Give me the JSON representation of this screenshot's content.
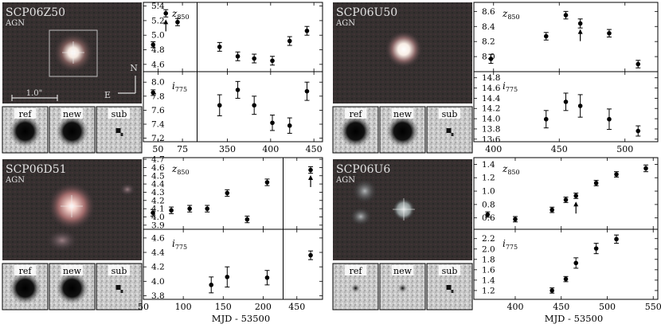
{
  "figure": {
    "xlabel": "MJD - 53500",
    "panels": [
      {
        "id": "SCP06Z50",
        "name": "SCP06Z50",
        "type_label": "AGN",
        "scale_label": "1.0\"",
        "compass": {
          "north": "N",
          "east": "E"
        },
        "stamps": [
          "ref",
          "new",
          "sub"
        ]
      },
      {
        "id": "SCP06U50",
        "name": "SCP06U50",
        "type_label": "AGN",
        "stamps": [
          "ref",
          "new",
          "sub"
        ]
      },
      {
        "id": "SCP06D51",
        "name": "SCP06D51",
        "type_label": "AGN",
        "stamps": [
          "ref",
          "new",
          "sub"
        ]
      },
      {
        "id": "SCP06U6",
        "name": "SCP06U6",
        "type_label": "AGN",
        "stamps": [
          "ref",
          "new",
          "sub"
        ]
      }
    ]
  },
  "chart_data": [
    {
      "id": "SCP06Z50",
      "type": "scatter",
      "xlabel": "",
      "x_segments": [
        {
          "xlim": [
            35,
            90
          ],
          "ticks": [
            50,
            75
          ]
        },
        {
          "xlim": [
            315,
            460
          ],
          "ticks": [
            350,
            400,
            450
          ]
        }
      ],
      "rows": [
        {
          "label": "z",
          "label_sub": "850",
          "ylim": [
            4.5,
            5.45
          ],
          "yticks": [
            "4.6",
            "4.8",
            "5.0",
            "5.2",
            "5.4"
          ],
          "points": [
            {
              "x": 45,
              "y": 4.87,
              "err": 0.04
            },
            {
              "x": 58,
              "y": 5.3,
              "err": 0.05
            },
            {
              "x": 70,
              "y": 5.18,
              "err": 0.05
            },
            {
              "x": 341,
              "y": 4.84,
              "err": 0.06
            },
            {
              "x": 362,
              "y": 4.71,
              "err": 0.06
            },
            {
              "x": 381,
              "y": 4.68,
              "err": 0.06
            },
            {
              "x": 402,
              "y": 4.65,
              "err": 0.06
            },
            {
              "x": 422,
              "y": 4.92,
              "err": 0.06
            },
            {
              "x": 442,
              "y": 5.06,
              "err": 0.06
            }
          ],
          "upper_limits": [
            {
              "x": 58,
              "y": 5.14
            }
          ]
        },
        {
          "label": "i",
          "label_sub": "775",
          "ylim": [
            7.15,
            8.15
          ],
          "yticks": [
            "7.2",
            "7.4",
            "7.6",
            "7.8",
            "8.0"
          ],
          "points": [
            {
              "x": 45,
              "y": 7.85,
              "err": 0.04
            },
            {
              "x": 341,
              "y": 7.67,
              "err": 0.15
            },
            {
              "x": 362,
              "y": 7.89,
              "err": 0.12
            },
            {
              "x": 381,
              "y": 7.67,
              "err": 0.13
            },
            {
              "x": 402,
              "y": 7.42,
              "err": 0.11
            },
            {
              "x": 422,
              "y": 7.38,
              "err": 0.11
            },
            {
              "x": 442,
              "y": 7.87,
              "err": 0.13
            }
          ],
          "upper_limits": []
        }
      ]
    },
    {
      "id": "SCP06U50",
      "type": "scatter",
      "xlabel": "",
      "x_segments": [
        {
          "xlim": [
            385,
            525
          ],
          "ticks": [
            400,
            450,
            500
          ]
        }
      ],
      "rows": [
        {
          "label": "z",
          "label_sub": "850",
          "ylim": [
            7.8,
            8.72
          ],
          "yticks": [
            "8.0",
            "8.2",
            "8.4",
            "8.6"
          ],
          "points": [
            {
              "x": 398,
              "y": 7.97,
              "err": 0.06
            },
            {
              "x": 440,
              "y": 8.27,
              "err": 0.05
            },
            {
              "x": 455,
              "y": 8.55,
              "err": 0.05
            },
            {
              "x": 466,
              "y": 8.44,
              "err": 0.06
            },
            {
              "x": 488,
              "y": 8.31,
              "err": 0.05
            },
            {
              "x": 510,
              "y": 7.9,
              "err": 0.05
            }
          ],
          "upper_limits": [
            {
              "x": 466,
              "y": 8.29
            }
          ]
        },
        {
          "label": "i",
          "label_sub": "775",
          "ylim": [
            13.55,
            14.92
          ],
          "yticks": [
            "13.6",
            "13.8",
            "14.0",
            "14.2",
            "14.4",
            "14.6",
            "14.8"
          ],
          "points": [
            {
              "x": 440,
              "y": 13.99,
              "err": 0.17
            },
            {
              "x": 455,
              "y": 14.33,
              "err": 0.17
            },
            {
              "x": 466,
              "y": 14.25,
              "err": 0.22
            },
            {
              "x": 488,
              "y": 13.99,
              "err": 0.2
            },
            {
              "x": 510,
              "y": 13.76,
              "err": 0.1
            }
          ],
          "upper_limits": []
        }
      ]
    },
    {
      "id": "SCP06D51",
      "type": "scatter",
      "xlabel": "MJD - 53500",
      "x_segments": [
        {
          "xlim": [
            50,
            225
          ],
          "ticks": [
            50,
            100,
            150,
            200
          ]
        },
        {
          "xlim": [
            435,
            478
          ],
          "ticks": [
            450
          ]
        }
      ],
      "rows": [
        {
          "label": "z",
          "label_sub": "850",
          "ylim": [
            3.85,
            4.72
          ],
          "yticks": [
            "3.9",
            "4.0",
            "4.1",
            "4.2",
            "4.3",
            "4.4",
            "4.5",
            "4.6",
            "4.7"
          ],
          "points": [
            {
              "x": 62,
              "y": 4.05,
              "err": 0.04
            },
            {
              "x": 85,
              "y": 4.08,
              "err": 0.04
            },
            {
              "x": 108,
              "y": 4.1,
              "err": 0.04
            },
            {
              "x": 130,
              "y": 4.1,
              "err": 0.04
            },
            {
              "x": 155,
              "y": 4.29,
              "err": 0.04
            },
            {
              "x": 180,
              "y": 3.97,
              "err": 0.04
            },
            {
              "x": 205,
              "y": 4.42,
              "err": 0.04
            },
            {
              "x": 465,
              "y": 4.57,
              "err": 0.04
            }
          ],
          "upper_limits": [
            {
              "x": 465,
              "y": 4.44
            }
          ]
        },
        {
          "label": "i",
          "label_sub": "775",
          "ylim": [
            3.75,
            4.72
          ],
          "yticks": [
            "3.8",
            "4.0",
            "4.2",
            "4.4",
            "4.6"
          ],
          "points": [
            {
              "x": 135,
              "y": 3.95,
              "err": 0.11
            },
            {
              "x": 155,
              "y": 4.06,
              "err": 0.14
            },
            {
              "x": 205,
              "y": 4.05,
              "err": 0.1
            },
            {
              "x": 465,
              "y": 4.36,
              "err": 0.06
            }
          ],
          "upper_limits": []
        }
      ]
    },
    {
      "id": "SCP06U6",
      "type": "scatter",
      "xlabel": "MJD - 53500",
      "x_segments": [
        {
          "xlim": [
            355,
            555
          ],
          "ticks": [
            400,
            450,
            500,
            550
          ]
        }
      ],
      "rows": [
        {
          "label": "z",
          "label_sub": "850",
          "ylim": [
            0.43,
            1.5
          ],
          "yticks": [
            "0.6",
            "0.8",
            "1.0",
            "1.2",
            "1.4"
          ],
          "points": [
            {
              "x": 370,
              "y": 0.65,
              "err": 0.04
            },
            {
              "x": 400,
              "y": 0.58,
              "err": 0.04
            },
            {
              "x": 440,
              "y": 0.72,
              "err": 0.04
            },
            {
              "x": 455,
              "y": 0.87,
              "err": 0.04
            },
            {
              "x": 466,
              "y": 0.93,
              "err": 0.04
            },
            {
              "x": 488,
              "y": 1.12,
              "err": 0.04
            },
            {
              "x": 510,
              "y": 1.25,
              "err": 0.04
            },
            {
              "x": 542,
              "y": 1.34,
              "err": 0.05
            }
          ],
          "upper_limits": [
            {
              "x": 466,
              "y": 0.76
            }
          ]
        },
        {
          "label": "i",
          "label_sub": "775",
          "ylim": [
            1.03,
            2.38
          ],
          "yticks": [
            "1.2",
            "1.4",
            "1.6",
            "1.8",
            "2.0",
            "2.2"
          ],
          "points": [
            {
              "x": 440,
              "y": 1.2,
              "err": 0.05
            },
            {
              "x": 455,
              "y": 1.42,
              "err": 0.05
            },
            {
              "x": 466,
              "y": 1.73,
              "err": 0.1
            },
            {
              "x": 488,
              "y": 2.01,
              "err": 0.1
            },
            {
              "x": 510,
              "y": 2.19,
              "err": 0.08
            }
          ],
          "upper_limits": []
        }
      ]
    }
  ]
}
